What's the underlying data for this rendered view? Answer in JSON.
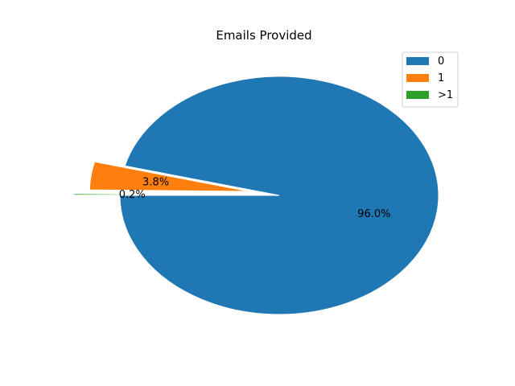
{
  "chart_data": {
    "type": "pie",
    "title": "Emails Provided",
    "labels": [
      "0",
      "1",
      ">1"
    ],
    "values": [
      96.0,
      3.8,
      0.2
    ],
    "value_labels": [
      "96.0%",
      "3.8%",
      "0.2%"
    ],
    "colors": [
      "#1f77b4",
      "#ff7f0e",
      "#2ca02c"
    ],
    "exploded": [
      false,
      true,
      true
    ],
    "start_angle_deg": 180,
    "legend_position": "top-right"
  }
}
